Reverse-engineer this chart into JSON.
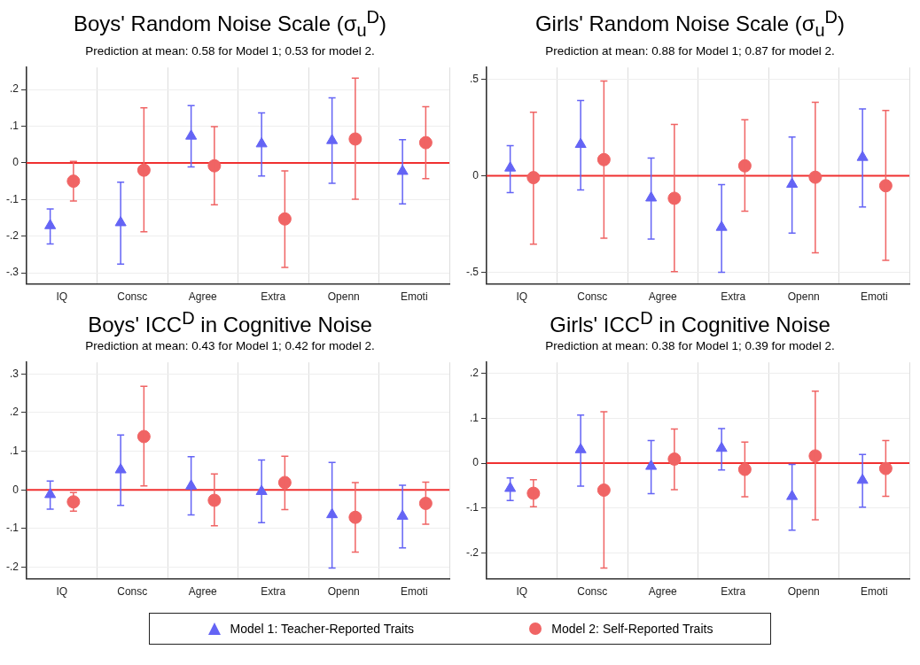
{
  "chart_data": [
    {
      "type": "scatter",
      "title": "Boys' Random Noise Scale (σ$_{u}$$^{D}$)",
      "subtitle": "Prediction at mean: 0.58 for Model 1;  0.53 for model 2.",
      "categories": [
        "IQ",
        "Consc",
        "Agree",
        "Extra",
        "Openn",
        "Emoti"
      ],
      "ylim": [
        -0.33,
        0.26
      ],
      "yticks": [
        {
          "value": -0.3,
          "label": "-.3"
        },
        {
          "value": -0.2,
          "label": "-.2"
        },
        {
          "value": -0.1,
          "label": "-.1"
        },
        {
          "value": 0,
          "label": "0"
        },
        {
          "value": 0.1,
          "label": ".1"
        },
        {
          "value": 0.2,
          "label": ".2"
        }
      ],
      "grid": true,
      "legend": "bottom",
      "ref_lines": [
        {
          "axis": "y",
          "value": 0,
          "color": "#f03030"
        }
      ],
      "series": [
        {
          "name": "Model 1: Teacher-Reported Traits",
          "color": "#6464f5",
          "marker": "triangle",
          "values": [
            -0.171,
            -0.163,
            0.073,
            0.052,
            0.061,
            -0.023
          ],
          "errors": [
            [
              -0.221,
              -0.126
            ],
            [
              -0.276,
              -0.053
            ],
            [
              -0.011,
              0.156
            ],
            [
              -0.036,
              0.136
            ],
            [
              -0.056,
              0.177
            ],
            [
              -0.112,
              0.063
            ]
          ]
        },
        {
          "name": "Model 2: Self-Reported Traits",
          "color": "#f06464",
          "marker": "circle",
          "values": [
            -0.05,
            -0.02,
            -0.008,
            -0.153,
            0.065,
            0.055
          ],
          "errors": [
            [
              -0.104,
              0.004
            ],
            [
              -0.188,
              0.15
            ],
            [
              -0.114,
              0.099
            ],
            [
              -0.285,
              -0.022
            ],
            [
              -0.099,
              0.231
            ],
            [
              -0.043,
              0.153
            ]
          ]
        }
      ]
    },
    {
      "type": "scatter",
      "title": "Girls' Random Noise Scale (σ$_{u}$$^{D}$)",
      "subtitle": "Prediction at mean: 0.88 for Model 1;  0.87 for model 2.",
      "categories": [
        "IQ",
        "Consc",
        "Agree",
        "Extra",
        "Openn",
        "Emoti"
      ],
      "ylim": [
        -0.56,
        0.56
      ],
      "yticks": [
        {
          "value": -0.5,
          "label": "-.5"
        },
        {
          "value": 0,
          "label": "0"
        },
        {
          "value": 0.5,
          "label": ".5"
        }
      ],
      "grid": true,
      "ref_lines": [
        {
          "axis": "y",
          "value": 0,
          "color": "#f03030"
        }
      ],
      "series": [
        {
          "color": "#6464f5",
          "marker": "triangle",
          "values": [
            0.04,
            0.162,
            -0.115,
            -0.267,
            -0.044,
            0.095
          ],
          "errors": [
            [
              -0.088,
              0.155
            ],
            [
              -0.074,
              0.389
            ],
            [
              -0.328,
              0.091
            ],
            [
              -0.5,
              -0.046
            ],
            [
              -0.297,
              0.2
            ],
            [
              -0.162,
              0.345
            ]
          ]
        },
        {
          "color": "#f06464",
          "marker": "circle",
          "values": [
            -0.01,
            0.083,
            -0.117,
            0.051,
            -0.008,
            -0.052
          ],
          "errors": [
            [
              -0.355,
              0.328
            ],
            [
              -0.323,
              0.49
            ],
            [
              -0.497,
              0.265
            ],
            [
              -0.184,
              0.289
            ],
            [
              -0.399,
              0.38
            ],
            [
              -0.438,
              0.338
            ]
          ]
        }
      ]
    },
    {
      "type": "scatter",
      "title": "Boys' ICC$^{D}$ in Cognitive Noise",
      "subtitle": "Prediction at mean: 0.43 for Model 1;  0.42 for model 2.",
      "categories": [
        "IQ",
        "Consc",
        "Agree",
        "Extra",
        "Openn",
        "Emoti"
      ],
      "ylim": [
        -0.23,
        0.33
      ],
      "yticks": [
        {
          "value": -0.2,
          "label": "-.2"
        },
        {
          "value": -0.1,
          "label": "-.1"
        },
        {
          "value": 0,
          "label": "0"
        },
        {
          "value": 0.1,
          "label": ".1"
        },
        {
          "value": 0.2,
          "label": ".2"
        },
        {
          "value": 0.3,
          "label": ".3"
        }
      ],
      "grid": true,
      "ref_lines": [
        {
          "axis": "y",
          "value": 0,
          "color": "#f03030"
        }
      ],
      "series": [
        {
          "color": "#6464f5",
          "marker": "triangle",
          "values": [
            -0.012,
            0.052,
            0.01,
            -0.004,
            -0.064,
            -0.068
          ],
          "errors": [
            [
              -0.05,
              0.023
            ],
            [
              -0.04,
              0.142
            ],
            [
              -0.065,
              0.086
            ],
            [
              -0.085,
              0.077
            ],
            [
              -0.202,
              0.071
            ],
            [
              -0.15,
              0.012
            ]
          ]
        },
        {
          "color": "#f06464",
          "marker": "circle",
          "values": [
            -0.031,
            0.138,
            -0.027,
            0.019,
            -0.071,
            -0.035
          ],
          "errors": [
            [
              -0.055,
              -0.007
            ],
            [
              0.01,
              0.268
            ],
            [
              -0.093,
              0.041
            ],
            [
              -0.051,
              0.087
            ],
            [
              -0.161,
              0.019
            ],
            [
              -0.089,
              0.02
            ]
          ]
        }
      ]
    },
    {
      "type": "scatter",
      "title": "Girls' ICC$^{D}$ in Cognitive Noise",
      "subtitle": "Prediction at mean: 0.38 for Model 1;  0.39 for model 2.",
      "categories": [
        "IQ",
        "Consc",
        "Agree",
        "Extra",
        "Openn",
        "Emoti"
      ],
      "ylim": [
        -0.257,
        0.224
      ],
      "yticks": [
        {
          "value": -0.2,
          "label": "-.2"
        },
        {
          "value": -0.1,
          "label": "-.1"
        },
        {
          "value": 0,
          "label": "0"
        },
        {
          "value": 0.1,
          "label": ".1"
        },
        {
          "value": 0.2,
          "label": ".2"
        }
      ],
      "grid": true,
      "ref_lines": [
        {
          "axis": "y",
          "value": 0,
          "color": "#f03030"
        }
      ],
      "series": [
        {
          "color": "#6464f5",
          "marker": "triangle",
          "values": [
            -0.056,
            0.03,
            -0.007,
            0.033,
            -0.074,
            -0.038
          ],
          "errors": [
            [
              -0.083,
              -0.033
            ],
            [
              -0.051,
              0.107
            ],
            [
              -0.068,
              0.05
            ],
            [
              -0.015,
              0.077
            ],
            [
              -0.149,
              -0.003
            ],
            [
              -0.098,
              0.019
            ]
          ]
        },
        {
          "color": "#f06464",
          "marker": "circle",
          "values": [
            -0.067,
            -0.06,
            0.009,
            -0.014,
            0.016,
            -0.012
          ],
          "errors": [
            [
              -0.097,
              -0.037
            ],
            [
              -0.233,
              0.114
            ],
            [
              -0.059,
              0.076
            ],
            [
              -0.075,
              0.047
            ],
            [
              -0.126,
              0.16
            ],
            [
              -0.074,
              0.05
            ]
          ]
        }
      ]
    }
  ]
}
